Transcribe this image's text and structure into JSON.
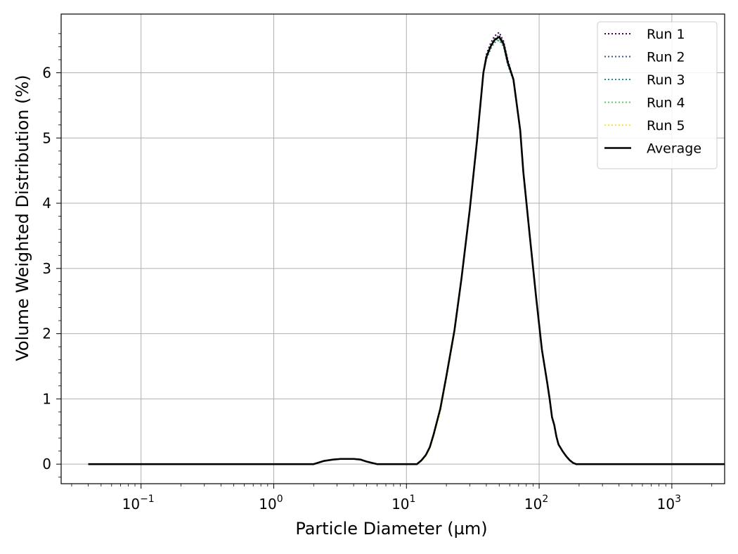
{
  "chart_data": {
    "type": "line",
    "xscale": "log",
    "xlabel": "Particle Diameter (µm)",
    "ylabel": "Volume Weighted Distribution (%)",
    "xlim": [
      0.025,
      2500
    ],
    "ylim": [
      -0.3,
      6.9
    ],
    "grid": true,
    "legend_position": "top-right",
    "x_ticks": [
      {
        "value": 0.1,
        "base": "10",
        "exp": "−1"
      },
      {
        "value": 1,
        "base": "10",
        "exp": "0"
      },
      {
        "value": 10,
        "base": "10",
        "exp": "1"
      },
      {
        "value": 100,
        "base": "10",
        "exp": "2"
      },
      {
        "value": 1000,
        "base": "10",
        "exp": "3"
      }
    ],
    "y_ticks": [
      0,
      1,
      2,
      3,
      4,
      5,
      6
    ],
    "x": [
      0.04,
      0.1,
      0.5,
      1.0,
      1.2,
      1.6,
      2.0,
      2.4,
      2.8,
      3.2,
      3.6,
      4.0,
      4.5,
      5.0,
      6.0,
      8.0,
      10.0,
      12.0,
      13.0,
      14.0,
      15.0,
      16.0,
      18.0,
      20.0,
      23.0,
      26.0,
      30.0,
      34.0,
      38.0,
      40.0,
      43.0,
      46.0,
      50.0,
      54.0,
      58.0,
      64.0,
      72.0,
      76.0,
      85.0,
      95.0,
      105.0,
      115.0,
      120.0,
      125.0,
      130.0,
      135.0,
      140.0,
      145.0,
      150.0,
      160.0,
      170.0,
      180.0,
      190.0,
      200.0,
      500.0,
      2500.0
    ],
    "series": [
      {
        "name": "Run 1",
        "color": "#440154",
        "style": "dotted",
        "values": [
          0,
          0,
          0,
          0,
          0,
          0,
          0,
          0.05,
          0.07,
          0.08,
          0.08,
          0.08,
          0.07,
          0.04,
          0,
          0,
          0,
          0,
          0.06,
          0.14,
          0.26,
          0.45,
          0.85,
          1.35,
          2.05,
          2.85,
          3.9,
          4.95,
          6.0,
          6.28,
          6.45,
          6.56,
          6.62,
          6.48,
          6.2,
          5.9,
          5.12,
          4.48,
          3.5,
          2.55,
          1.75,
          1.25,
          1.0,
          0.72,
          0.6,
          0.42,
          0.3,
          0.25,
          0.2,
          0.12,
          0.06,
          0.02,
          0,
          0,
          0,
          0
        ]
      },
      {
        "name": "Run 2",
        "color": "#3b528b",
        "style": "dotted",
        "values": [
          0,
          0,
          0,
          0,
          0,
          0,
          0,
          0.05,
          0.07,
          0.08,
          0.08,
          0.08,
          0.07,
          0.04,
          0,
          0,
          0,
          0,
          0.06,
          0.14,
          0.26,
          0.45,
          0.85,
          1.35,
          2.05,
          2.85,
          3.9,
          4.95,
          6.0,
          6.25,
          6.42,
          6.52,
          6.58,
          6.46,
          6.18,
          5.9,
          5.12,
          4.48,
          3.5,
          2.55,
          1.75,
          1.25,
          1.0,
          0.72,
          0.6,
          0.42,
          0.3,
          0.25,
          0.2,
          0.12,
          0.06,
          0.02,
          0,
          0,
          0,
          0
        ]
      },
      {
        "name": "Run 3",
        "color": "#21918c",
        "style": "dotted",
        "values": [
          0,
          0,
          0,
          0,
          0,
          0,
          0,
          0.05,
          0.07,
          0.08,
          0.08,
          0.08,
          0.07,
          0.04,
          0,
          0,
          0,
          0,
          0.06,
          0.14,
          0.26,
          0.45,
          0.85,
          1.35,
          2.05,
          2.85,
          3.9,
          4.95,
          6.0,
          6.2,
          6.36,
          6.46,
          6.5,
          6.4,
          6.12,
          5.88,
          5.12,
          4.48,
          3.5,
          2.55,
          1.75,
          1.25,
          1.0,
          0.72,
          0.6,
          0.42,
          0.3,
          0.25,
          0.2,
          0.12,
          0.06,
          0.02,
          0,
          0,
          0,
          0
        ]
      },
      {
        "name": "Run 4",
        "color": "#5ec962",
        "style": "dotted",
        "values": [
          0,
          0,
          0,
          0,
          0,
          0,
          0,
          0.05,
          0.07,
          0.08,
          0.08,
          0.08,
          0.07,
          0.04,
          0,
          0,
          0,
          0,
          0.06,
          0.14,
          0.26,
          0.45,
          0.85,
          1.35,
          2.05,
          2.85,
          3.9,
          4.95,
          6.0,
          6.22,
          6.38,
          6.48,
          6.52,
          6.42,
          6.14,
          5.9,
          5.12,
          4.48,
          3.5,
          2.55,
          1.75,
          1.25,
          1.0,
          0.72,
          0.6,
          0.42,
          0.3,
          0.25,
          0.2,
          0.12,
          0.06,
          0.02,
          0,
          0,
          0,
          0
        ]
      },
      {
        "name": "Run 5",
        "color": "#fde725",
        "style": "dotted",
        "values": [
          0,
          0,
          0,
          0,
          0,
          0,
          0,
          0.05,
          0.07,
          0.08,
          0.08,
          0.08,
          0.07,
          0.04,
          0,
          0,
          0,
          0,
          0.05,
          0.12,
          0.24,
          0.42,
          0.8,
          1.3,
          2.0,
          2.82,
          3.88,
          4.94,
          6.0,
          6.24,
          6.4,
          6.5,
          6.56,
          6.44,
          6.16,
          5.9,
          5.12,
          4.48,
          3.5,
          2.55,
          1.75,
          1.25,
          1.0,
          0.72,
          0.6,
          0.42,
          0.3,
          0.25,
          0.2,
          0.12,
          0.06,
          0.02,
          0,
          0,
          0,
          0
        ]
      },
      {
        "name": "Average",
        "color": "#000000",
        "style": "solid",
        "values": [
          0,
          0,
          0,
          0,
          0,
          0,
          0,
          0.05,
          0.07,
          0.08,
          0.08,
          0.08,
          0.07,
          0.04,
          0,
          0,
          0,
          0,
          0.06,
          0.14,
          0.26,
          0.45,
          0.85,
          1.35,
          2.05,
          2.85,
          3.9,
          4.95,
          6.0,
          6.24,
          6.4,
          6.5,
          6.55,
          6.44,
          6.16,
          5.9,
          5.12,
          4.48,
          3.5,
          2.55,
          1.75,
          1.25,
          1.0,
          0.72,
          0.6,
          0.42,
          0.3,
          0.25,
          0.2,
          0.12,
          0.06,
          0.02,
          0,
          0,
          0,
          0
        ]
      }
    ]
  }
}
